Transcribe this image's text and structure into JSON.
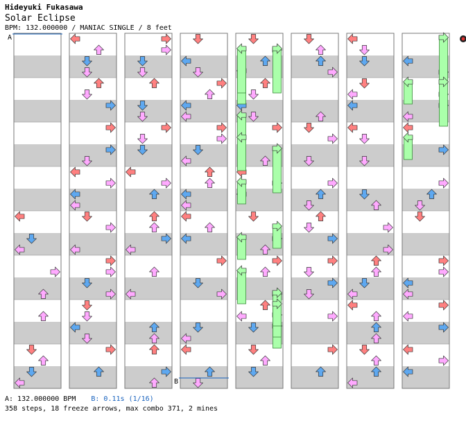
{
  "header": {
    "artist": "Hideyuki Fukasawa",
    "title": "Solar Eclipse",
    "bpm_line": "BPM: 132.000000 / MANIAC SINGLE / 8 feet"
  },
  "markers": {
    "a": "A",
    "b": "B"
  },
  "footer": {
    "bpm_a": "A: 132.000000 BPM",
    "bpm_b": "B: 0.11s (1/16)",
    "stats": "358 steps, 18 freeze arrows, max combo 371, 2 mines"
  },
  "colors": {
    "quarter": "#ff8080",
    "eighth": "#5ea8f0",
    "sixteenth": "#ffaaff",
    "freeze": "#aaffaa",
    "stripe": "#cccccc",
    "mine": "#e03030"
  },
  "chart_data": {
    "type": "step-chart",
    "columns": 8,
    "lanes": [
      "left",
      "down",
      "up",
      "right"
    ],
    "beats_per_column": 16,
    "steps": 358,
    "freeze_arrows": 18,
    "max_combo": 371,
    "mines": 2
  }
}
